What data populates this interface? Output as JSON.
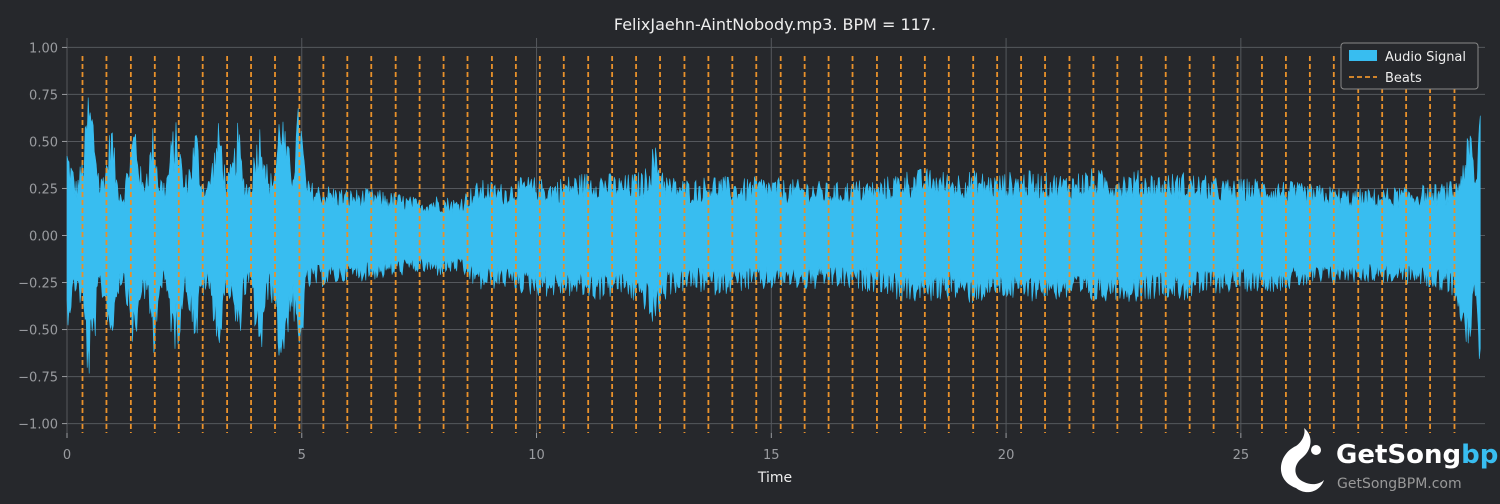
{
  "colors": {
    "background": "#26282c",
    "grid": "#55585d",
    "signal": "#38bdf0",
    "beats": "#e8912b",
    "text": "#eeeeee",
    "tick_text": "#9a9ca0",
    "legend_bg": "#26282c",
    "legend_border": "#888888",
    "logo_text": "#ffffff",
    "logo_accent": "#38bdf0",
    "logo_sub": "#999999"
  },
  "chart_data": {
    "type": "area",
    "title": "FelixJaehn-AintNobody.mp3. BPM = 117.",
    "xlabel": "Time",
    "ylabel": "",
    "xlim": [
      0,
      30.2
    ],
    "ylim": [
      -1.05,
      1.05
    ],
    "xticks": [
      0,
      5,
      10,
      15,
      20,
      25
    ],
    "xtick_labels": [
      "0",
      "5",
      "10",
      "15",
      "20",
      "25"
    ],
    "yticks": [
      1.0,
      0.75,
      0.5,
      0.25,
      0.0,
      -0.25,
      -0.5,
      -0.75,
      -1.0
    ],
    "ytick_labels": [
      "1.00",
      "0.75",
      "0.50",
      "0.25",
      "0.00",
      "−0.25",
      "−0.50",
      "−0.75",
      "−1.00"
    ],
    "grid": true,
    "legend_position": "top-right",
    "series": [
      {
        "name": "Audio Signal",
        "kind": "envelope",
        "x": [
          0.0,
          0.2,
          0.35,
          0.45,
          0.55,
          0.7,
          0.85,
          0.95,
          1.05,
          1.2,
          1.35,
          1.45,
          1.6,
          1.75,
          1.85,
          1.95,
          2.1,
          2.25,
          2.35,
          2.5,
          2.65,
          2.75,
          2.85,
          3.0,
          3.15,
          3.25,
          3.4,
          3.55,
          3.65,
          3.75,
          3.9,
          4.05,
          4.15,
          4.3,
          4.45,
          4.55,
          4.65,
          4.8,
          4.95,
          5.0,
          5.1,
          5.3,
          5.6,
          6.0,
          6.5,
          7.0,
          7.5,
          7.9,
          8.3,
          8.8,
          9.3,
          9.8,
          10.3,
          10.8,
          11.3,
          11.8,
          12.3,
          12.5,
          12.8,
          13.3,
          13.8,
          14.3,
          14.8,
          15.3,
          15.8,
          16.3,
          16.8,
          17.3,
          17.8,
          18.3,
          18.8,
          19.3,
          19.8,
          20.3,
          20.8,
          21.3,
          21.8,
          22.3,
          22.8,
          23.3,
          23.8,
          24.3,
          24.8,
          25.3,
          25.8,
          26.3,
          26.8,
          27.3,
          27.8,
          28.3,
          28.8,
          29.3,
          29.6,
          29.8,
          29.9,
          30.0,
          30.1
        ],
        "upper": [
          0.5,
          0.3,
          0.45,
          0.8,
          0.7,
          0.3,
          0.45,
          0.65,
          0.35,
          0.25,
          0.5,
          0.66,
          0.3,
          0.45,
          0.63,
          0.35,
          0.3,
          0.58,
          0.62,
          0.3,
          0.45,
          0.62,
          0.35,
          0.3,
          0.5,
          0.64,
          0.3,
          0.45,
          0.63,
          0.35,
          0.3,
          0.58,
          0.64,
          0.3,
          0.45,
          0.78,
          0.55,
          0.4,
          0.75,
          0.6,
          0.3,
          0.28,
          0.27,
          0.25,
          0.25,
          0.23,
          0.2,
          0.22,
          0.2,
          0.3,
          0.28,
          0.32,
          0.3,
          0.33,
          0.35,
          0.32,
          0.35,
          0.5,
          0.32,
          0.3,
          0.33,
          0.3,
          0.32,
          0.3,
          0.3,
          0.28,
          0.3,
          0.3,
          0.35,
          0.36,
          0.34,
          0.35,
          0.33,
          0.35,
          0.34,
          0.33,
          0.36,
          0.34,
          0.35,
          0.33,
          0.34,
          0.32,
          0.3,
          0.31,
          0.3,
          0.28,
          0.27,
          0.25,
          0.25,
          0.26,
          0.27,
          0.28,
          0.3,
          0.5,
          0.58,
          0.3,
          0.78
        ],
        "lower": [
          -0.5,
          -0.3,
          -0.45,
          -0.82,
          -0.68,
          -0.3,
          -0.45,
          -0.64,
          -0.35,
          -0.25,
          -0.5,
          -0.68,
          -0.3,
          -0.45,
          -0.66,
          -0.35,
          -0.3,
          -0.6,
          -0.64,
          -0.3,
          -0.45,
          -0.63,
          -0.35,
          -0.3,
          -0.5,
          -0.67,
          -0.3,
          -0.45,
          -0.66,
          -0.35,
          -0.3,
          -0.6,
          -0.66,
          -0.3,
          -0.45,
          -0.8,
          -0.6,
          -0.4,
          -0.78,
          -0.6,
          -0.3,
          -0.28,
          -0.27,
          -0.25,
          -0.24,
          -0.22,
          -0.2,
          -0.22,
          -0.2,
          -0.3,
          -0.28,
          -0.32,
          -0.33,
          -0.33,
          -0.35,
          -0.32,
          -0.4,
          -0.52,
          -0.32,
          -0.3,
          -0.32,
          -0.3,
          -0.3,
          -0.28,
          -0.3,
          -0.28,
          -0.3,
          -0.3,
          -0.36,
          -0.36,
          -0.34,
          -0.37,
          -0.33,
          -0.36,
          -0.34,
          -0.35,
          -0.37,
          -0.34,
          -0.36,
          -0.33,
          -0.35,
          -0.32,
          -0.3,
          -0.3,
          -0.3,
          -0.28,
          -0.27,
          -0.25,
          -0.25,
          -0.26,
          -0.27,
          -0.3,
          -0.35,
          -0.6,
          -0.65,
          -0.3,
          -0.78
        ]
      },
      {
        "name": "Beats",
        "kind": "vlines",
        "x": [
          0.33,
          0.84,
          1.36,
          1.87,
          2.38,
          2.89,
          3.41,
          3.92,
          4.43,
          4.95,
          5.46,
          5.97,
          6.48,
          7.0,
          7.51,
          8.02,
          8.53,
          9.05,
          9.56,
          10.07,
          10.58,
          11.1,
          11.61,
          12.12,
          12.63,
          13.15,
          13.66,
          14.17,
          14.68,
          15.2,
          15.71,
          16.22,
          16.73,
          17.25,
          17.76,
          18.27,
          18.78,
          19.3,
          19.81,
          20.32,
          20.83,
          21.35,
          21.86,
          22.37,
          22.88,
          23.4,
          23.91,
          24.42,
          24.93,
          25.45,
          25.96,
          26.47,
          26.98,
          27.5,
          28.01,
          28.52,
          29.03,
          29.55
        ]
      }
    ]
  },
  "watermark": {
    "brand_main": "GetSong",
    "brand_accent": "bpm",
    "url": "GetSongBPM.com"
  }
}
